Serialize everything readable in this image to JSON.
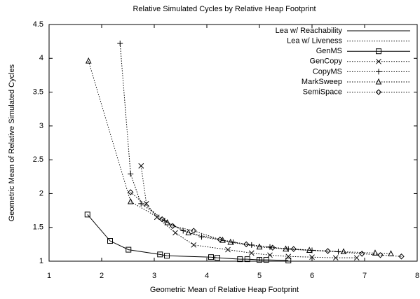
{
  "chart_data": {
    "type": "line",
    "title": "Relative Simulated Cycles by Relative Heap Footprint",
    "x_label": "Geometric Mean of Relative Heap Footprint",
    "y_label": "Geometric Mean of Relative Simulated Cycles",
    "xlim": [
      1,
      8
    ],
    "xticks": [
      1,
      2,
      3,
      4,
      5,
      6,
      7,
      8
    ],
    "ylim": [
      1,
      4.5
    ],
    "yticks": [
      1,
      1.5,
      2,
      2.5,
      3,
      3.5,
      4,
      4.5
    ],
    "legend": "top-right",
    "series": [
      {
        "name": "Lea w/ Reachability",
        "color": "#000000",
        "dash": "solid",
        "marker": "none",
        "x": [
          1,
          8
        ],
        "values": [
          1,
          1
        ]
      },
      {
        "name": "Lea w/ Liveness",
        "color": "#000000",
        "dash": "dotted",
        "marker": "none",
        "x": [
          1,
          8
        ],
        "values": [
          1,
          1
        ]
      },
      {
        "name": "GenMS",
        "color": "#000000",
        "dash": "solid",
        "marker": "square",
        "x": [
          1.73,
          2.16,
          2.51,
          3.11,
          3.24,
          4.08,
          4.2,
          4.63,
          4.77,
          5.0,
          5.13,
          5.55
        ],
        "values": [
          1.69,
          1.3,
          1.17,
          1.1,
          1.08,
          1.06,
          1.05,
          1.03,
          1.03,
          1.02,
          1.02,
          1.01
        ]
      },
      {
        "name": "GenCopy",
        "color": "#000000",
        "dash": "dotted",
        "marker": "cross",
        "x": [
          2.75,
          2.85,
          3.05,
          3.4,
          3.75,
          4.4,
          4.85,
          5.2,
          5.55,
          6.0,
          6.45,
          6.85
        ],
        "values": [
          2.41,
          1.85,
          1.65,
          1.42,
          1.24,
          1.17,
          1.12,
          1.09,
          1.07,
          1.06,
          1.05,
          1.05
        ]
      },
      {
        "name": "CopyMS",
        "color": "#000000",
        "dash": "dotted",
        "marker": "plus",
        "x": [
          2.35,
          2.55,
          2.75,
          3.2,
          3.55,
          3.9,
          4.5,
          4.85,
          5.2,
          5.55,
          6.0,
          6.5
        ],
        "values": [
          4.22,
          2.29,
          1.85,
          1.6,
          1.45,
          1.36,
          1.28,
          1.24,
          1.21,
          1.18,
          1.16,
          1.14
        ]
      },
      {
        "name": "MarkSweep",
        "color": "#000000",
        "dash": "dotted",
        "marker": "triangle",
        "x": [
          1.75,
          2.55,
          3.25,
          3.65,
          4.3,
          4.45,
          5.0,
          5.5,
          5.95,
          6.6,
          7.2,
          7.5
        ],
        "values": [
          3.96,
          1.88,
          1.57,
          1.42,
          1.31,
          1.28,
          1.21,
          1.18,
          1.16,
          1.14,
          1.12,
          1.11
        ]
      },
      {
        "name": "SemiSpace",
        "color": "#000000",
        "dash": "dotted",
        "marker": "diamond",
        "x": [
          2.55,
          3.15,
          3.35,
          3.75,
          4.25,
          4.75,
          5.25,
          5.65,
          6.3,
          6.95,
          7.3,
          7.7
        ],
        "values": [
          2.02,
          1.62,
          1.52,
          1.45,
          1.32,
          1.25,
          1.2,
          1.18,
          1.15,
          1.11,
          1.09,
          1.07
        ]
      }
    ]
  }
}
